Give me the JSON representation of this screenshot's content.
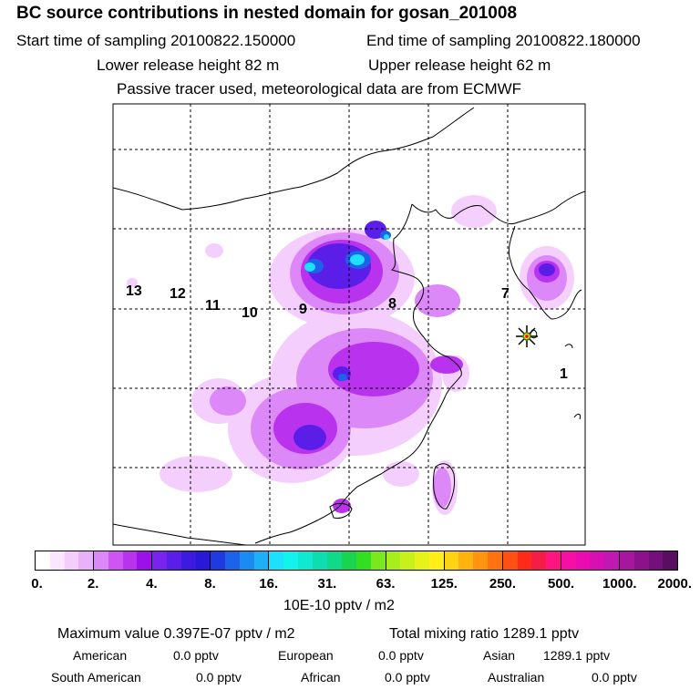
{
  "header": {
    "title": "BC  source contributions in nested domain for gosan_201008",
    "start_label": "Start time of sampling 20100822.150000",
    "end_label": "End time of sampling 20100822.180000",
    "lower_label": "Lower release height   82 m",
    "upper_label": "Upper release height   62 m",
    "tracer_note": "Passive tracer used, meteorological data are from ECMWF"
  },
  "map": {
    "point_labels": [
      "1",
      "7",
      "8",
      "9",
      "10",
      "11",
      "12",
      "13"
    ],
    "receptor": "gosan"
  },
  "colorbar": {
    "ticks": [
      "0.",
      "2.",
      "4.",
      "8.",
      "16.",
      "31.",
      "63.",
      "125.",
      "250.",
      "500.",
      "1000.",
      "2000."
    ],
    "colors": [
      [
        "#ffffff",
        "#fbe6ff",
        "#f4cdfd",
        "#eab1fb"
      ],
      [
        "#dd88f8",
        "#cc55f3",
        "#b933ee",
        "#9a12e8"
      ],
      [
        "#7a22ee",
        "#5a1ee8",
        "#3d1ae0",
        "#2a18d8"
      ],
      [
        "#1f3be0",
        "#1c63ea",
        "#1b8bf2",
        "#1cb0f6"
      ],
      [
        "#1de0ff",
        "#14f2ec",
        "#10e8d2",
        "#10dcb2"
      ],
      [
        "#12d98a",
        "#18d450",
        "#30e020",
        "#7ae81e"
      ],
      [
        "#a8ee1c",
        "#c8f01a",
        "#e6f21a",
        "#ffee18"
      ],
      [
        "#ffd214",
        "#ffb210",
        "#ff9410",
        "#ff7212"
      ],
      [
        "#ff5014",
        "#ff2a18",
        "#f51c45",
        "#ff1480"
      ],
      [
        "#f60fa4",
        "#ea0cb0",
        "#d810b4",
        "#c018b2"
      ],
      [
        "#a6169e",
        "#8c128c",
        "#74107c",
        "#5a0e60"
      ]
    ],
    "unit": "10E-10 pptv / m2"
  },
  "footer": {
    "max_label": "Maximum value  0.397E-07 pptv / m2",
    "total_label": "Total mixing ratio      1289.1 pptv",
    "american": "American",
    "american_val": "0.0 pptv",
    "european": "European",
    "european_val": "0.0 pptv",
    "asian": "Asian",
    "asian_val": "1289.1 pptv",
    "south_american": "South American",
    "south_american_val": "0.0 pptv",
    "african": "African",
    "african_val": "0.0 pptv",
    "australian": "Australian",
    "australian_val": "0.0 pptv"
  }
}
